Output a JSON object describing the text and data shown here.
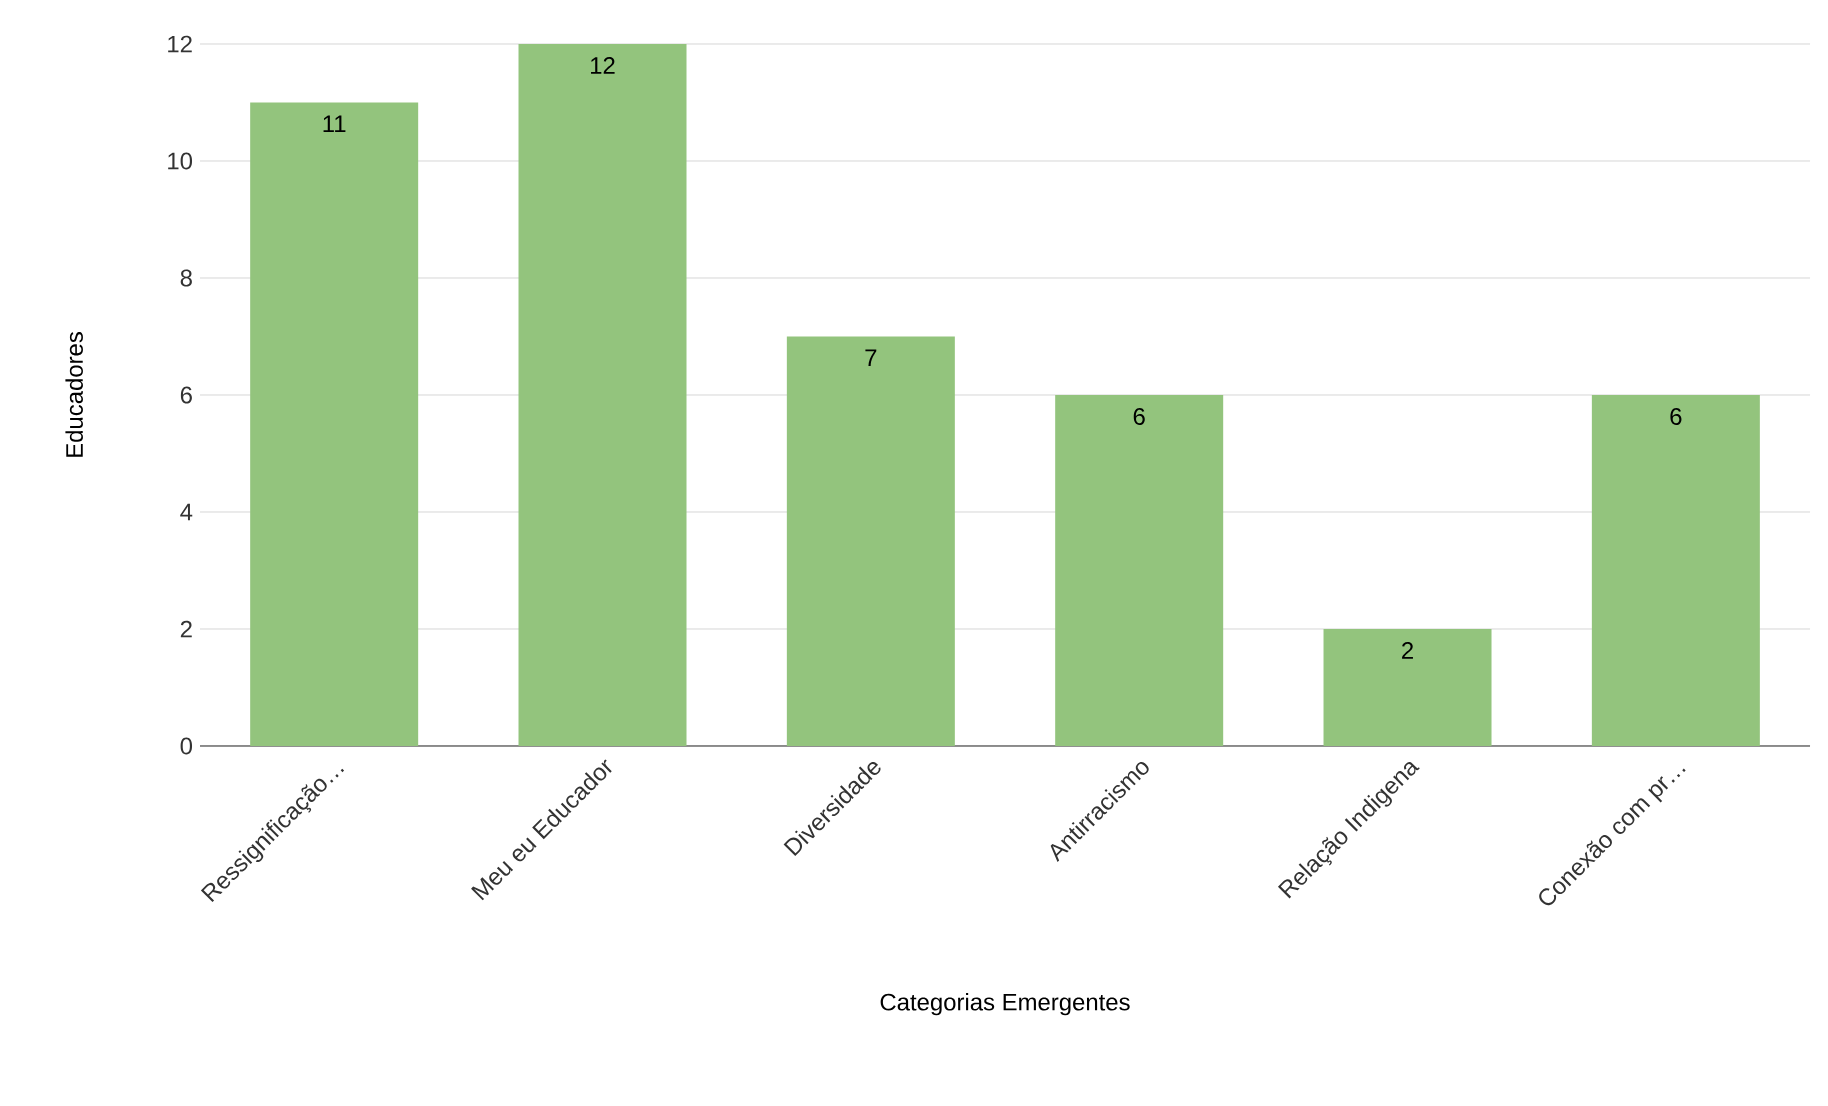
{
  "chart_data": {
    "type": "bar",
    "xlabel": "Categorias Emergentes",
    "ylabel": "Educadores",
    "categories": [
      "Ressignificação…",
      "Meu eu Educador",
      "Diversidade",
      "Antirracismo",
      "Relação Indigena",
      "Conexão com pr…"
    ],
    "values": [
      11,
      12,
      7,
      6,
      2,
      6
    ],
    "color": "#93c47d",
    "ylim": [
      0,
      12
    ],
    "yticks": [
      0,
      2,
      4,
      6,
      8,
      10,
      12
    ],
    "grid": "y",
    "data_labels": true
  }
}
